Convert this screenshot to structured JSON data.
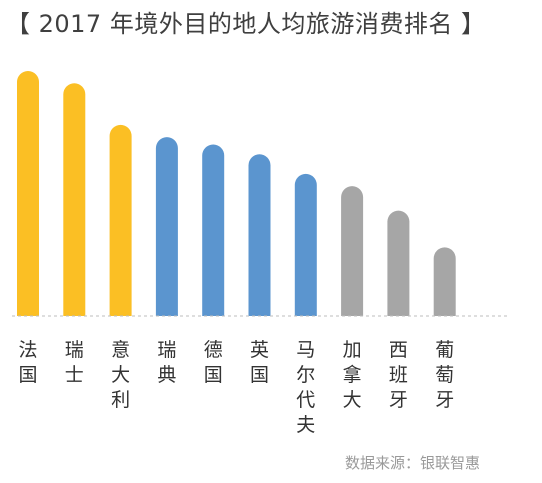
{
  "chart_data": {
    "type": "bar",
    "title": "【 2017 年境外目的地人均旅游消费排名 】",
    "categories": [
      "法国",
      "瑞士",
      "意大利",
      "瑞典",
      "德国",
      "英国",
      "马尔代夫",
      "加拿大",
      "西班牙",
      "葡萄牙"
    ],
    "values": [
      100,
      95,
      78,
      73,
      70,
      66,
      58,
      53,
      43,
      28
    ],
    "colors": [
      "#fbbf24",
      "#fbbf24",
      "#fbbf24",
      "#5b95cf",
      "#5b95cf",
      "#5b95cf",
      "#5b95cf",
      "#a6a6a6",
      "#a6a6a6",
      "#a6a6a6"
    ],
    "ylim": [
      0,
      100
    ],
    "grid": false,
    "source": "数据来源：银联智惠"
  }
}
